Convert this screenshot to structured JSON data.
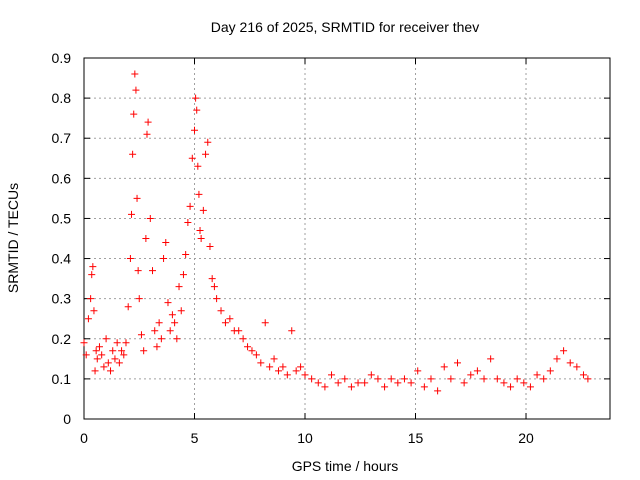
{
  "chart_data": {
    "type": "scatter",
    "title": "Day 216 of 2025, SRMTID for receiver thev",
    "xlabel": "GPS time / hours",
    "ylabel": "SRMTID / TECUs",
    "xlim": [
      0,
      23.8
    ],
    "ylim": [
      0,
      0.9
    ],
    "xticks": [
      "0",
      "5",
      "10",
      "15",
      "20"
    ],
    "xtick_values": [
      0,
      5,
      10,
      15,
      20
    ],
    "yticks": [
      "0",
      "0.1",
      "0.2",
      "0.3",
      "0.4",
      "0.5",
      "0.6",
      "0.7",
      "0.8",
      "0.9"
    ],
    "ytick_values": [
      0,
      0.1,
      0.2,
      0.3,
      0.4,
      0.5,
      0.6,
      0.7,
      0.8,
      0.9
    ],
    "grid": true,
    "marker": "+",
    "color": "#ff0000",
    "series": [
      {
        "name": "SRMTID",
        "x": [
          0.0,
          0.1,
          0.2,
          0.3,
          0.35,
          0.4,
          0.45,
          0.5,
          0.55,
          0.6,
          0.7,
          0.8,
          0.9,
          1.0,
          1.1,
          1.2,
          1.3,
          1.4,
          1.5,
          1.6,
          1.7,
          1.8,
          1.9,
          2.0,
          2.1,
          2.15,
          2.2,
          2.25,
          2.3,
          2.35,
          2.4,
          2.45,
          2.5,
          2.6,
          2.7,
          2.8,
          2.85,
          2.9,
          3.0,
          3.1,
          3.2,
          3.3,
          3.4,
          3.5,
          3.6,
          3.7,
          3.8,
          3.9,
          4.0,
          4.1,
          4.2,
          4.3,
          4.4,
          4.5,
          4.6,
          4.7,
          4.8,
          4.9,
          5.0,
          5.05,
          5.1,
          5.15,
          5.2,
          5.25,
          5.3,
          5.4,
          5.5,
          5.6,
          5.7,
          5.8,
          5.9,
          6.0,
          6.2,
          6.4,
          6.6,
          6.8,
          7.0,
          7.2,
          7.4,
          7.6,
          7.8,
          8.0,
          8.2,
          8.4,
          8.6,
          8.8,
          9.0,
          9.2,
          9.4,
          9.6,
          9.8,
          10.0,
          10.3,
          10.6,
          10.9,
          11.2,
          11.5,
          11.8,
          12.1,
          12.4,
          12.7,
          13.0,
          13.3,
          13.6,
          13.9,
          14.2,
          14.5,
          14.8,
          15.1,
          15.4,
          15.7,
          16.0,
          16.3,
          16.6,
          16.9,
          17.2,
          17.5,
          17.8,
          18.1,
          18.4,
          18.7,
          19.0,
          19.3,
          19.6,
          19.9,
          20.2,
          20.5,
          20.8,
          21.1,
          21.4,
          21.7,
          22.0,
          22.3,
          22.6,
          22.8
        ],
        "y": [
          0.19,
          0.16,
          0.25,
          0.3,
          0.36,
          0.38,
          0.27,
          0.12,
          0.17,
          0.15,
          0.18,
          0.16,
          0.13,
          0.2,
          0.14,
          0.12,
          0.17,
          0.15,
          0.19,
          0.14,
          0.17,
          0.16,
          0.19,
          0.28,
          0.4,
          0.51,
          0.66,
          0.76,
          0.86,
          0.82,
          0.55,
          0.37,
          0.3,
          0.21,
          0.17,
          0.45,
          0.71,
          0.74,
          0.5,
          0.37,
          0.22,
          0.18,
          0.24,
          0.2,
          0.4,
          0.44,
          0.29,
          0.22,
          0.26,
          0.24,
          0.2,
          0.33,
          0.27,
          0.36,
          0.41,
          0.49,
          0.53,
          0.65,
          0.72,
          0.8,
          0.77,
          0.63,
          0.56,
          0.47,
          0.45,
          0.52,
          0.66,
          0.69,
          0.43,
          0.35,
          0.33,
          0.3,
          0.27,
          0.24,
          0.25,
          0.22,
          0.22,
          0.2,
          0.18,
          0.17,
          0.16,
          0.14,
          0.24,
          0.13,
          0.15,
          0.12,
          0.13,
          0.11,
          0.22,
          0.12,
          0.13,
          0.11,
          0.1,
          0.09,
          0.08,
          0.11,
          0.09,
          0.1,
          0.08,
          0.09,
          0.09,
          0.11,
          0.1,
          0.08,
          0.1,
          0.09,
          0.1,
          0.09,
          0.12,
          0.08,
          0.1,
          0.07,
          0.13,
          0.1,
          0.14,
          0.09,
          0.11,
          0.12,
          0.1,
          0.15,
          0.1,
          0.09,
          0.08,
          0.1,
          0.09,
          0.08,
          0.11,
          0.1,
          0.12,
          0.15,
          0.17,
          0.14,
          0.13,
          0.11,
          0.1
        ]
      }
    ]
  }
}
